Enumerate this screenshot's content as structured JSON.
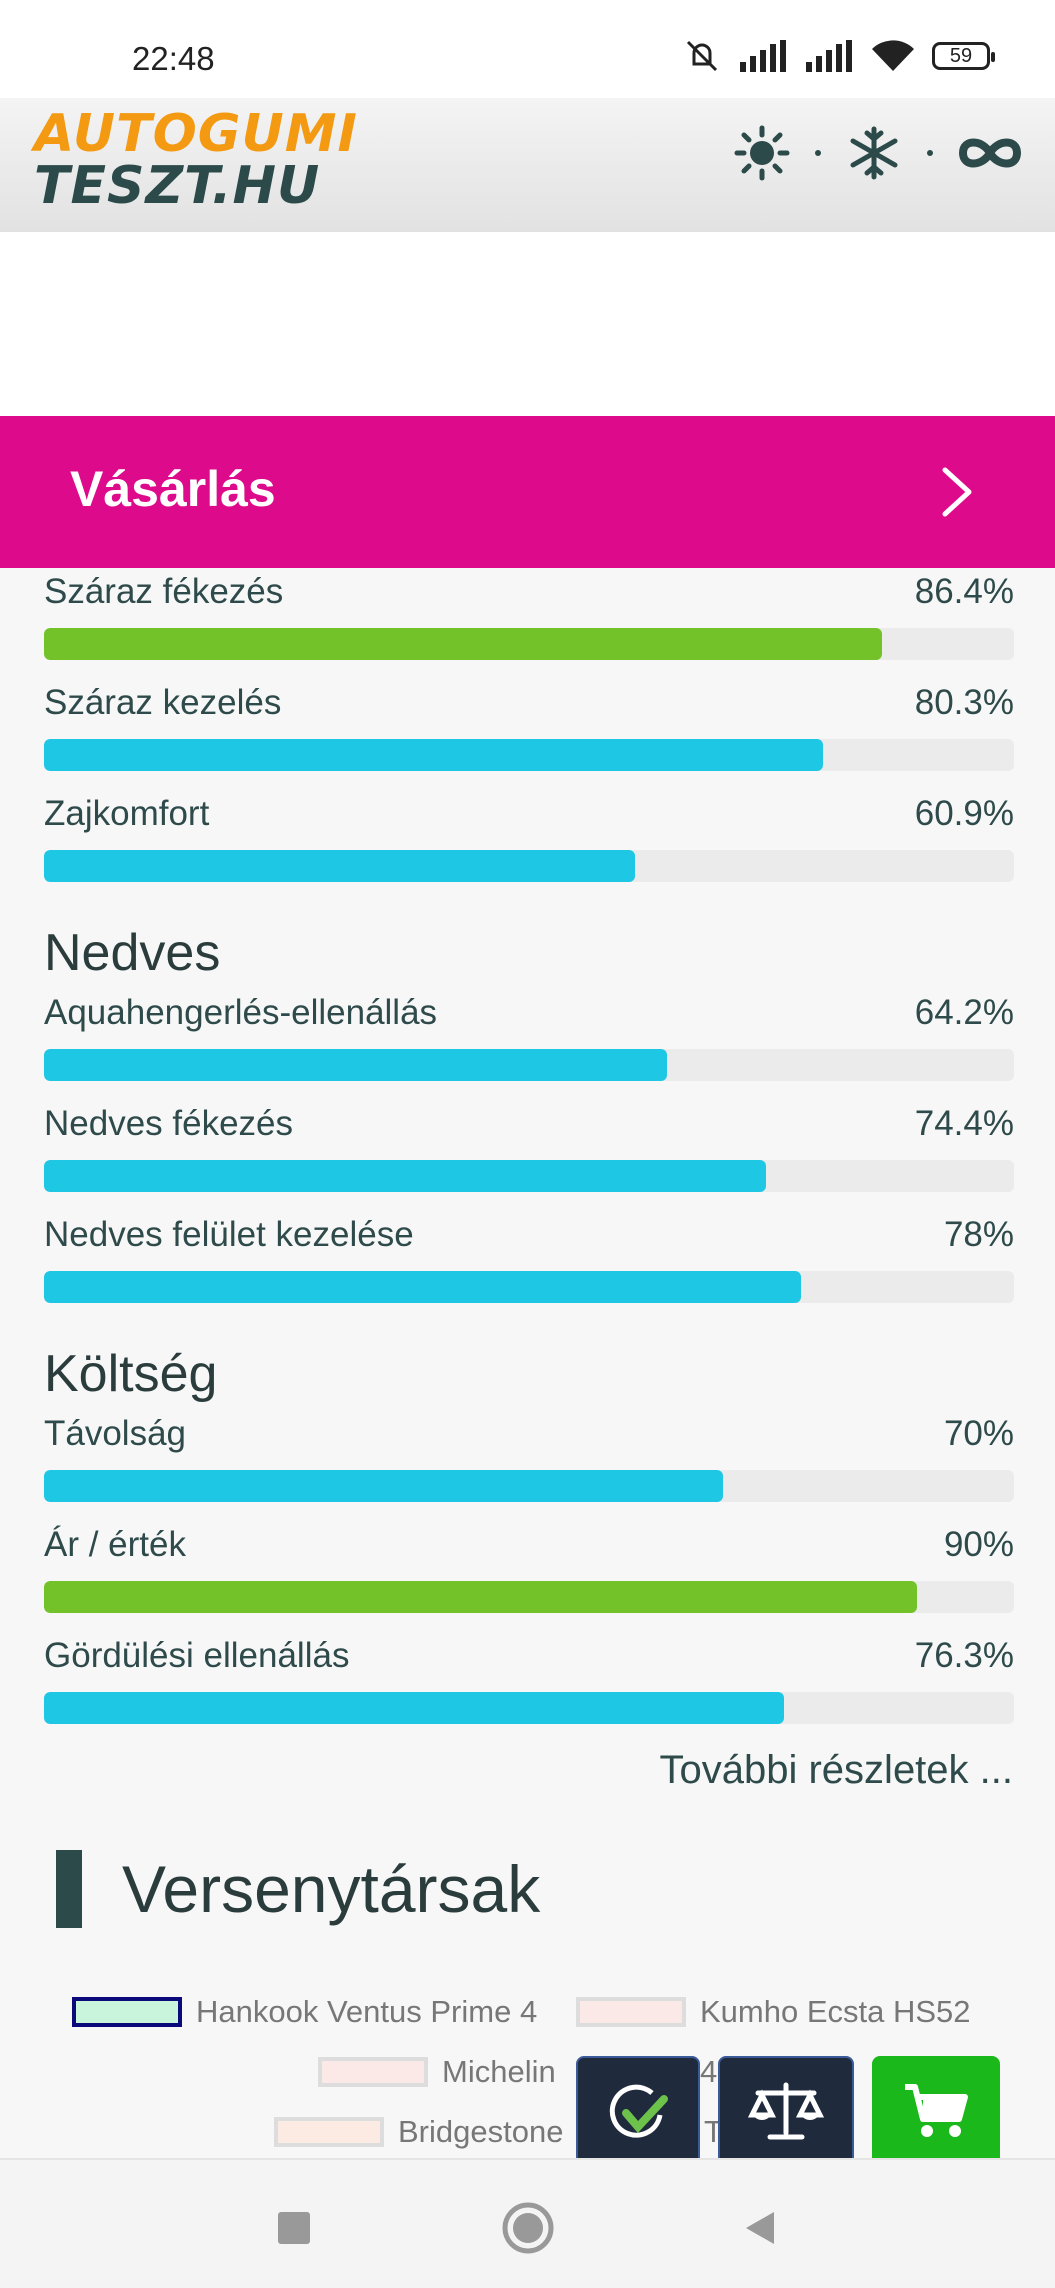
{
  "status": {
    "time": "22:48",
    "battery": "59"
  },
  "logo": {
    "line1": "AUTOGUMI",
    "line2": "TESZT.HU"
  },
  "buy": {
    "label": "Vásárlás"
  },
  "ratings": {
    "dry": [
      {
        "label": "Száraz fékezés",
        "value": "86.4%",
        "fraction": 0.864,
        "color": "green"
      },
      {
        "label": "Száraz kezelés",
        "value": "80.3%",
        "fraction": 0.803,
        "color": "blue"
      },
      {
        "label": "Zajkomfort",
        "value": "60.9%",
        "fraction": 0.609,
        "color": "blue"
      }
    ],
    "wet_title": "Nedves",
    "wet": [
      {
        "label": "Aquahengerlés-ellenállás",
        "value": "64.2%",
        "fraction": 0.642,
        "color": "blue"
      },
      {
        "label": "Nedves fékezés",
        "value": "74.4%",
        "fraction": 0.744,
        "color": "blue"
      },
      {
        "label": "Nedves felület kezelése",
        "value": "78%",
        "fraction": 0.78,
        "color": "blue"
      }
    ],
    "cost_title": "Költség",
    "cost": [
      {
        "label": "Távolság",
        "value": "70%",
        "fraction": 0.7,
        "color": "blue"
      },
      {
        "label": "Ár / érték",
        "value": "90%",
        "fraction": 0.9,
        "color": "green"
      },
      {
        "label": "Gördülési ellenállás",
        "value": "76.3%",
        "fraction": 0.763,
        "color": "blue"
      }
    ]
  },
  "more_link": "További részletek ...",
  "competitors": {
    "title": "Versenytársak",
    "legend": [
      {
        "label": "Hankook Ventus Prime 4"
      },
      {
        "label": "Kumho Ecsta HS52"
      },
      {
        "label": "Michelin"
      },
      {
        "label": "4"
      },
      {
        "label": "Bridgestone"
      },
      {
        "label": "T"
      }
    ]
  },
  "colors": {
    "accent_magenta": "#dd0a8c",
    "bar_blue": "#1ec8e5",
    "bar_green": "#74c229",
    "logo_orange": "#f39a12",
    "logo_dark": "#2c4a4a"
  },
  "icons": [
    "sun-icon",
    "snowflake-icon",
    "infinity-icon",
    "chevron-right-icon",
    "check-circle-icon",
    "scale-icon",
    "cart-icon"
  ]
}
